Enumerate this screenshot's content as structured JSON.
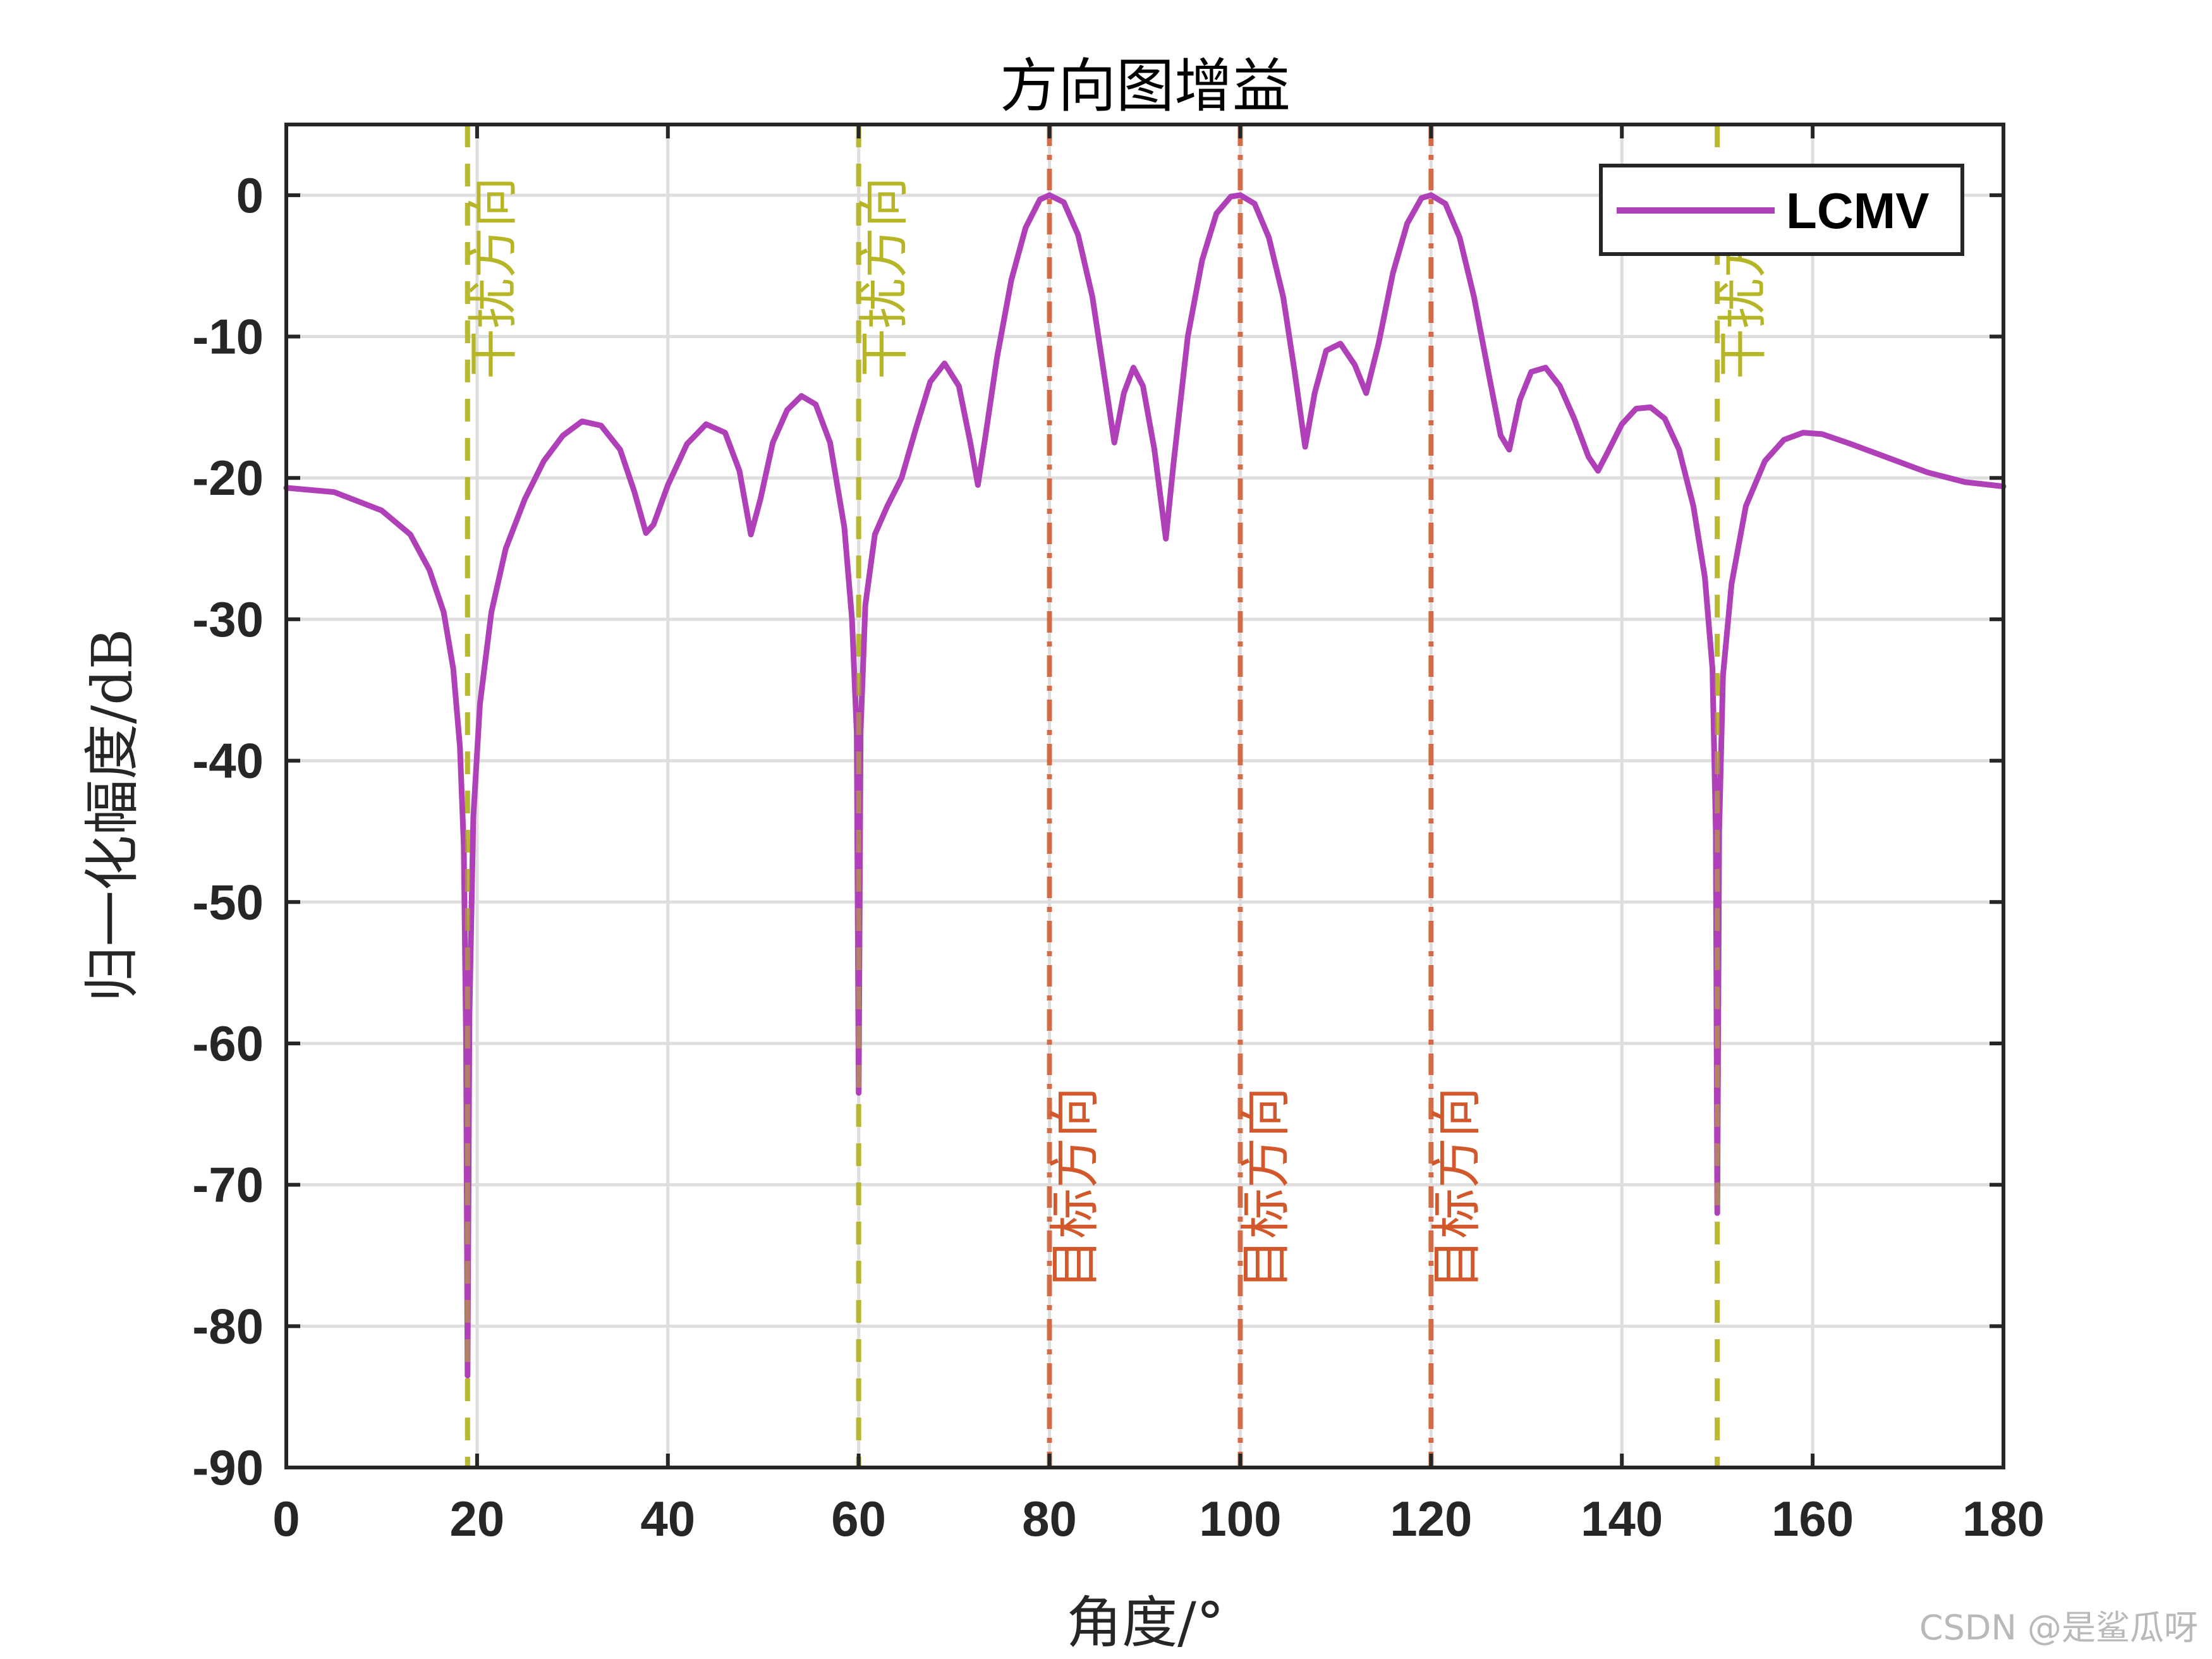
{
  "chart_data": {
    "type": "line",
    "title": "方向图增益",
    "xlabel": "角度/°",
    "ylabel": "归一化幅度/dB",
    "xlim": [
      0,
      180
    ],
    "ylim": [
      -90,
      5
    ],
    "xticks": [
      0,
      20,
      40,
      60,
      80,
      100,
      120,
      140,
      160,
      180
    ],
    "yticks": [
      0,
      -10,
      -20,
      -30,
      -40,
      -50,
      -60,
      -70,
      -80,
      -90
    ],
    "grid": true,
    "legend_position": "top-right",
    "series": [
      {
        "name": "LCMV",
        "color": "#b040b8",
        "points": [
          [
            0,
            -20.7
          ],
          [
            5,
            -21.0
          ],
          [
            10,
            -22.3
          ],
          [
            13,
            -24.0
          ],
          [
            15,
            -26.5
          ],
          [
            16.5,
            -29.5
          ],
          [
            17.5,
            -33.5
          ],
          [
            18.2,
            -39
          ],
          [
            18.6,
            -46
          ],
          [
            18.85,
            -60
          ],
          [
            19.0,
            -83.5
          ],
          [
            19.2,
            -58
          ],
          [
            19.6,
            -44
          ],
          [
            20.3,
            -36
          ],
          [
            21.5,
            -29.5
          ],
          [
            23,
            -25.0
          ],
          [
            25,
            -21.5
          ],
          [
            27,
            -18.8
          ],
          [
            29,
            -17.0
          ],
          [
            31,
            -16.0
          ],
          [
            33,
            -16.3
          ],
          [
            35,
            -18.0
          ],
          [
            36.5,
            -21.0
          ],
          [
            37.7,
            -23.9
          ],
          [
            38.5,
            -23.3
          ],
          [
            40,
            -20.5
          ],
          [
            42,
            -17.6
          ],
          [
            44,
            -16.2
          ],
          [
            46,
            -16.8
          ],
          [
            47.5,
            -19.5
          ],
          [
            48.7,
            -24.0
          ],
          [
            49.7,
            -21.5
          ],
          [
            51,
            -17.5
          ],
          [
            52.5,
            -15.2
          ],
          [
            54,
            -14.2
          ],
          [
            55.5,
            -14.8
          ],
          [
            57,
            -17.5
          ],
          [
            58.5,
            -23.5
          ],
          [
            59.3,
            -30
          ],
          [
            59.8,
            -38
          ],
          [
            60.0,
            -63.5
          ],
          [
            60.2,
            -38
          ],
          [
            60.7,
            -29
          ],
          [
            61.7,
            -24
          ],
          [
            63,
            -22.0
          ],
          [
            64.5,
            -20.0
          ],
          [
            66,
            -16.5
          ],
          [
            67.5,
            -13.2
          ],
          [
            69,
            -11.9
          ],
          [
            70.5,
            -13.5
          ],
          [
            71.7,
            -17.5
          ],
          [
            72.5,
            -20.5
          ],
          [
            73.3,
            -17
          ],
          [
            74.5,
            -11.5
          ],
          [
            76,
            -6.0
          ],
          [
            77.5,
            -2.3
          ],
          [
            79,
            -0.3
          ],
          [
            80,
            0
          ],
          [
            81.5,
            -0.5
          ],
          [
            83,
            -2.8
          ],
          [
            84.5,
            -7.2
          ],
          [
            85.8,
            -13.0
          ],
          [
            86.8,
            -17.5
          ],
          [
            87.8,
            -14.0
          ],
          [
            88.8,
            -12.2
          ],
          [
            89.8,
            -13.5
          ],
          [
            91,
            -18
          ],
          [
            92.2,
            -24.3
          ],
          [
            93,
            -19
          ],
          [
            94.5,
            -10.0
          ],
          [
            96,
            -4.6
          ],
          [
            97.5,
            -1.3
          ],
          [
            99,
            -0.1
          ],
          [
            100,
            0
          ],
          [
            101.5,
            -0.6
          ],
          [
            103,
            -3.0
          ],
          [
            104.5,
            -7.2
          ],
          [
            105.7,
            -12.5
          ],
          [
            106.8,
            -17.8
          ],
          [
            107.8,
            -14.0
          ],
          [
            109,
            -11.0
          ],
          [
            110.5,
            -10.5
          ],
          [
            112,
            -12.0
          ],
          [
            113.2,
            -14.0
          ],
          [
            114.5,
            -10.5
          ],
          [
            116,
            -5.5
          ],
          [
            117.5,
            -2.0
          ],
          [
            119,
            -0.2
          ],
          [
            120,
            0
          ],
          [
            121.5,
            -0.6
          ],
          [
            123,
            -3.0
          ],
          [
            124.5,
            -7.2
          ],
          [
            126,
            -12.5
          ],
          [
            127.3,
            -17.0
          ],
          [
            128.2,
            -18.0
          ],
          [
            129.3,
            -14.5
          ],
          [
            130.5,
            -12.5
          ],
          [
            132,
            -12.2
          ],
          [
            133.5,
            -13.5
          ],
          [
            135,
            -15.8
          ],
          [
            136.5,
            -18.5
          ],
          [
            137.5,
            -19.5
          ],
          [
            138.5,
            -18.2
          ],
          [
            140,
            -16.2
          ],
          [
            141.5,
            -15.1
          ],
          [
            143,
            -15.0
          ],
          [
            144.5,
            -15.8
          ],
          [
            146,
            -18.0
          ],
          [
            147.5,
            -22.0
          ],
          [
            148.7,
            -27.0
          ],
          [
            149.5,
            -33.5
          ],
          [
            149.85,
            -45
          ],
          [
            150.0,
            -72
          ],
          [
            150.2,
            -45
          ],
          [
            150.6,
            -34
          ],
          [
            151.5,
            -27.5
          ],
          [
            153,
            -22.0
          ],
          [
            155,
            -18.8
          ],
          [
            157,
            -17.3
          ],
          [
            159,
            -16.8
          ],
          [
            161,
            -16.9
          ],
          [
            164,
            -17.6
          ],
          [
            168,
            -18.6
          ],
          [
            172,
            -19.6
          ],
          [
            176,
            -20.3
          ],
          [
            180,
            -20.6
          ]
        ]
      }
    ],
    "markers": [
      {
        "x": 19,
        "label": "干扰方向",
        "color": "#b5b526",
        "kind": "interference"
      },
      {
        "x": 60,
        "label": "干扰方向",
        "color": "#b5b526",
        "kind": "interference"
      },
      {
        "x": 150,
        "label": "干扰方向",
        "color": "#b5b526",
        "kind": "interference"
      },
      {
        "x": 80,
        "label": "目标方向",
        "color": "#d2572a",
        "kind": "target"
      },
      {
        "x": 100,
        "label": "目标方向",
        "color": "#d2572a",
        "kind": "target"
      },
      {
        "x": 120,
        "label": "目标方向",
        "color": "#d2572a",
        "kind": "target"
      }
    ]
  },
  "watermark": "CSDN @是鲨瓜呀"
}
